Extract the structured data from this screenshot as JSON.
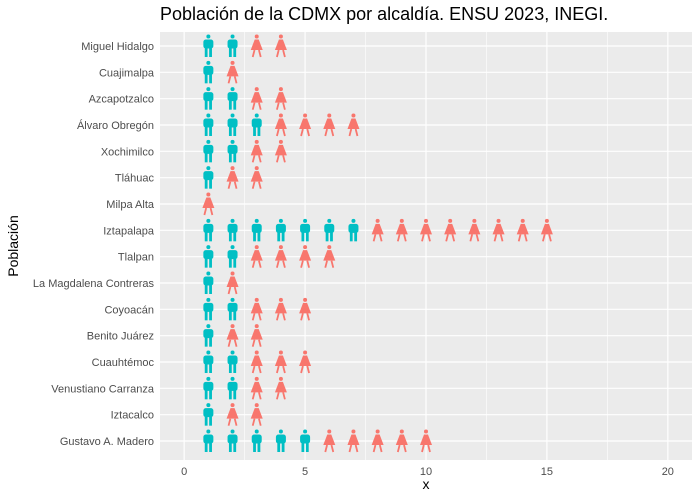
{
  "chart_data": {
    "type": "scatter",
    "title": "Población de la CDMX por alcaldía. ENSU 2023, INEGI.",
    "xlabel": "x",
    "ylabel": "Población",
    "xlim": [
      -1,
      21
    ],
    "x_ticks": [
      0,
      5,
      10,
      15,
      20
    ],
    "grid": true,
    "legend": "none",
    "colors": {
      "male": "#00BFC4",
      "female": "#F8766D",
      "panel": "#EBEBEB",
      "grid": "#FFFFFF"
    },
    "icons": {
      "male": "male-person-icon",
      "female": "female-person-icon"
    },
    "categories": [
      "Miguel Hidalgo",
      "Cuajimalpa",
      "Azcapotzalco",
      "Álvaro Obregón",
      "Xochimilco",
      "Tláhuac",
      "Milpa Alta",
      "Iztapalapa",
      "Tlalpan",
      "La Magdalena Contreras",
      "Coyoacán",
      "Benito Juárez",
      "Cuauhtémoc",
      "Venustiano Carranza",
      "Iztacalco",
      "Gustavo A. Madero"
    ],
    "male_counts": [
      2,
      1,
      2,
      3,
      2,
      1,
      0,
      7,
      2,
      1,
      2,
      1,
      2,
      2,
      1,
      5
    ],
    "female_counts": [
      2,
      1,
      2,
      4,
      2,
      2,
      1,
      8,
      4,
      1,
      3,
      2,
      3,
      2,
      2,
      5
    ]
  }
}
